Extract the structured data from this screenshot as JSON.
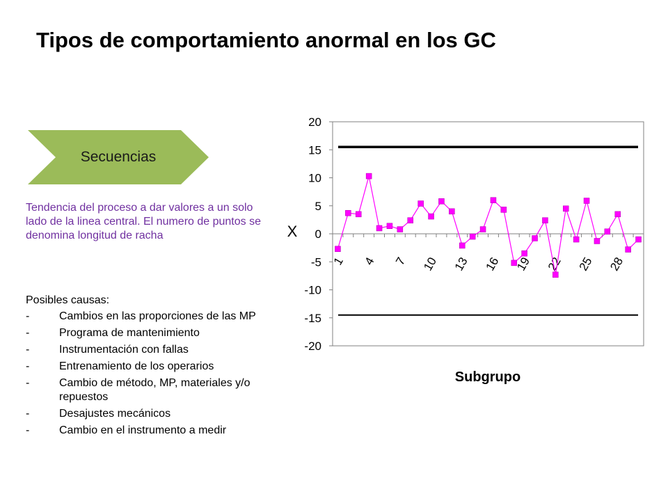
{
  "slide": {
    "title": "Tipos de comportamiento anormal en los GC",
    "chevron_label": "Secuencias",
    "chevron_color": "#9bbb59",
    "description": "Tendencia del proceso a dar valores a un solo lado de la linea central. El numero de puntos se denomina longitud de racha",
    "causes_title": "Posibles causas:",
    "causes": [
      "Cambios en las proporciones de las MP",
      "Programa de mantenimiento",
      "Instrumentación con fallas",
      "Entrenamiento de los operarios",
      "Cambio de método, MP, materiales y/o repuestos",
      "Desajustes mecánicos",
      "Cambio en el instrumento a medir"
    ],
    "bullet_symbol": "-"
  },
  "chart_data": {
    "type": "line",
    "title": "",
    "xlabel": "Subgrupo",
    "ylabel": "X",
    "ylim": [
      -20,
      20
    ],
    "yticks": [
      20,
      15,
      10,
      5,
      0,
      -5,
      -10,
      -15,
      -20
    ],
    "xtick_labels": [
      "1",
      "4",
      "7",
      "10",
      "13",
      "16",
      "19",
      "22",
      "25",
      "28"
    ],
    "x": [
      1,
      2,
      3,
      4,
      5,
      6,
      7,
      8,
      9,
      10,
      11,
      12,
      13,
      14,
      15,
      16,
      17,
      18,
      19,
      20,
      21,
      22,
      23,
      24,
      25,
      26,
      27,
      28,
      29,
      30
    ],
    "series": [
      {
        "name": "",
        "color": "#ff00ff",
        "values": [
          -2.7,
          3.7,
          3.5,
          10.3,
          1.0,
          1.4,
          0.8,
          2.4,
          5.4,
          3.1,
          5.8,
          4.0,
          -2.1,
          -0.5,
          0.8,
          6.0,
          4.3,
          -5.2,
          -3.5,
          -0.8,
          2.4,
          -7.3,
          4.5,
          -1.0,
          5.9,
          -1.3,
          0.4,
          3.5,
          -2.8,
          -1.0
        ]
      }
    ],
    "control_limits": {
      "ucl": 15.5,
      "lcl": -14.5,
      "color": "#000000"
    },
    "grid": false,
    "legend": "none"
  }
}
